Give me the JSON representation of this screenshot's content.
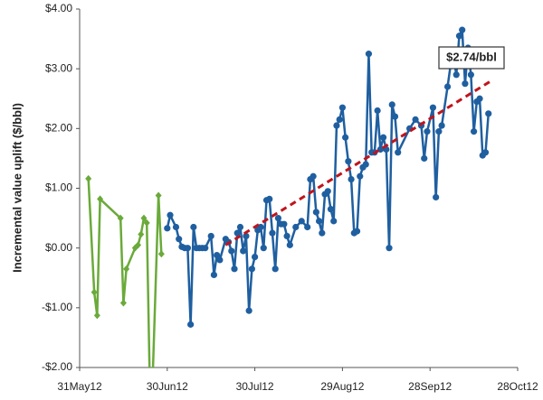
{
  "chart_data": {
    "type": "line",
    "y_label": "Incremental value uplift ($/bbl)",
    "xlim": [
      "2012-05-31",
      "2012-10-28"
    ],
    "xticks": [
      {
        "value": "2012-05-31",
        "label": "31May12"
      },
      {
        "value": "2012-06-30",
        "label": "30Jun12"
      },
      {
        "value": "2012-07-30",
        "label": "30Jul12"
      },
      {
        "value": "2012-08-29",
        "label": "29Aug12"
      },
      {
        "value": "2012-09-28",
        "label": "28Sep12"
      },
      {
        "value": "2012-10-28",
        "label": "28Oct12"
      }
    ],
    "ylim": [
      -2,
      4
    ],
    "yticks": [
      {
        "value": -2,
        "label": "-$2.00"
      },
      {
        "value": -1,
        "label": "-$1.00"
      },
      {
        "value": 0,
        "label": "$0.00"
      },
      {
        "value": 1,
        "label": "$1.00"
      },
      {
        "value": 2,
        "label": "$2.00"
      },
      {
        "value": 3,
        "label": "$3.00"
      },
      {
        "value": 4,
        "label": "$4.00"
      }
    ],
    "grid": false,
    "series": [
      {
        "color": "#6aaa3a",
        "marker": "diamond",
        "x": [
          "2012-06-03",
          "2012-06-05",
          "2012-06-06",
          "2012-06-07",
          "2012-06-14",
          "2012-06-15",
          "2012-06-16",
          "2012-06-19",
          "2012-06-20",
          "2012-06-21",
          "2012-06-22",
          "2012-06-23",
          "2012-06-24",
          "2012-06-25",
          "2012-06-27",
          "2012-06-28"
        ],
        "values": [
          1.16,
          -0.74,
          -1.13,
          0.82,
          0.5,
          -0.92,
          -0.35,
          0.0,
          0.05,
          0.23,
          0.5,
          0.42,
          -2.2,
          -2.2,
          0.88,
          -0.1
        ]
      },
      {
        "color": "#1f5fa0",
        "marker": "circle",
        "x": [
          "2012-06-30",
          "2012-07-01",
          "2012-07-03",
          "2012-07-04",
          "2012-07-05",
          "2012-07-06",
          "2012-07-07",
          "2012-07-08",
          "2012-07-09",
          "2012-07-10",
          "2012-07-11",
          "2012-07-12",
          "2012-07-13",
          "2012-07-15",
          "2012-07-16",
          "2012-07-17",
          "2012-07-18",
          "2012-07-20",
          "2012-07-21",
          "2012-07-22",
          "2012-07-23",
          "2012-07-24",
          "2012-07-25",
          "2012-07-26",
          "2012-07-27",
          "2012-07-28",
          "2012-07-29",
          "2012-07-30",
          "2012-07-31",
          "2012-08-01",
          "2012-08-02",
          "2012-08-03",
          "2012-08-04",
          "2012-08-05",
          "2012-08-06",
          "2012-08-07",
          "2012-08-08",
          "2012-08-09",
          "2012-08-10",
          "2012-08-11",
          "2012-08-13",
          "2012-08-15",
          "2012-08-17",
          "2012-08-18",
          "2012-08-19",
          "2012-08-20",
          "2012-08-21",
          "2012-08-22",
          "2012-08-23",
          "2012-08-24",
          "2012-08-25",
          "2012-08-26",
          "2012-08-27",
          "2012-08-28",
          "2012-08-29",
          "2012-08-30",
          "2012-08-31",
          "2012-09-01",
          "2012-09-02",
          "2012-09-03",
          "2012-09-04",
          "2012-09-05",
          "2012-09-06",
          "2012-09-07",
          "2012-09-08",
          "2012-09-09",
          "2012-09-10",
          "2012-09-11",
          "2012-09-12",
          "2012-09-13",
          "2012-09-14",
          "2012-09-15",
          "2012-09-16",
          "2012-09-17",
          "2012-09-21",
          "2012-09-23",
          "2012-09-25",
          "2012-09-26",
          "2012-09-27",
          "2012-09-29",
          "2012-09-30",
          "2012-10-01",
          "2012-10-02",
          "2012-10-04",
          "2012-10-05",
          "2012-10-06",
          "2012-10-07",
          "2012-10-08",
          "2012-10-09",
          "2012-10-10",
          "2012-10-11",
          "2012-10-12",
          "2012-10-13",
          "2012-10-14",
          "2012-10-15",
          "2012-10-16",
          "2012-10-17",
          "2012-10-18"
        ],
        "values": [
          0.33,
          0.55,
          0.35,
          0.15,
          0.02,
          0.0,
          0.0,
          -1.28,
          0.35,
          0.0,
          0.0,
          0.0,
          0.0,
          0.2,
          -0.45,
          -0.12,
          -0.2,
          0.15,
          0.1,
          -0.05,
          -0.35,
          0.25,
          0.35,
          -0.05,
          0.2,
          -1.05,
          -0.35,
          -0.15,
          0.3,
          0.35,
          0.0,
          0.8,
          0.82,
          0.25,
          -0.35,
          0.5,
          0.4,
          0.4,
          0.2,
          0.05,
          0.35,
          0.45,
          0.35,
          1.15,
          1.2,
          0.6,
          0.45,
          0.25,
          0.9,
          0.95,
          0.65,
          0.45,
          2.05,
          2.15,
          2.35,
          1.85,
          1.45,
          1.15,
          0.25,
          0.28,
          1.2,
          1.35,
          1.4,
          3.25,
          1.6,
          1.6,
          2.3,
          1.65,
          1.85,
          1.65,
          0.0,
          2.4,
          2.2,
          1.6,
          2.0,
          2.15,
          2.05,
          1.5,
          1.95,
          2.35,
          0.85,
          1.95,
          2.05,
          2.7,
          3.05,
          3.2,
          2.9,
          3.55,
          3.65,
          2.75,
          3.35,
          2.9,
          1.95,
          2.45,
          2.5,
          1.55,
          1.6,
          2.25
        ]
      }
    ],
    "trendline": {
      "color": "#c0141c",
      "x": [
        "2012-07-20",
        "2012-10-19"
      ],
      "values": [
        0.05,
        2.8
      ]
    },
    "annotation": "$2.74/bbl"
  }
}
